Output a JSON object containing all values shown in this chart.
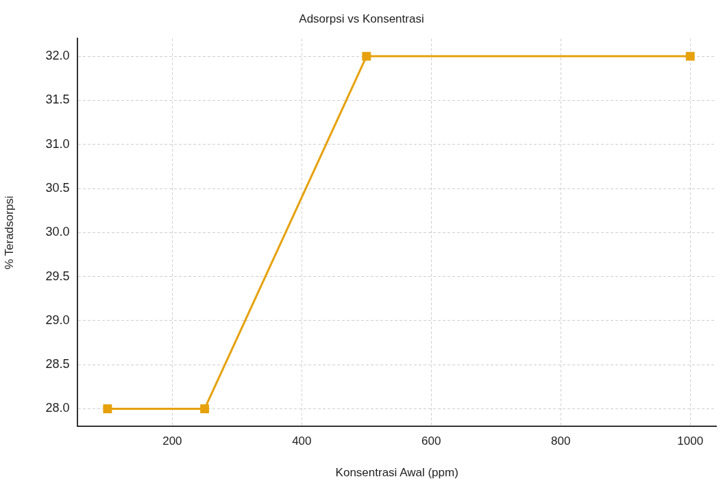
{
  "chart_data": {
    "type": "line",
    "title": "Adsorpsi vs Konsentrasi",
    "xlabel": "Konsentrasi Awal (ppm)",
    "ylabel": "% Teradsorpsi",
    "x": [
      100,
      250,
      500,
      1000
    ],
    "series": [
      {
        "color": "#e6a10c",
        "values": [
          28.0,
          28.0,
          32.0,
          32.0
        ]
      }
    ],
    "xlim": [
      54,
      1040
    ],
    "xticks": [
      200,
      400,
      600,
      800,
      1000
    ],
    "ylim": [
      27.8,
      32.2
    ],
    "yticks": [
      {
        "value": 28,
        "label": "28.0"
      },
      {
        "value": 28.5,
        "label": "28.5"
      },
      {
        "value": 29,
        "label": "29.0"
      },
      {
        "value": 29.5,
        "label": "29.5"
      },
      {
        "value": 30,
        "label": "30.0"
      },
      {
        "value": 30.5,
        "label": "30.5"
      },
      {
        "value": 31,
        "label": "31.0"
      },
      {
        "value": 31.5,
        "label": "31.5"
      },
      {
        "value": 32,
        "label": "32.0"
      }
    ],
    "grid": true,
    "legend": false,
    "marker": "square",
    "line_style": "solid"
  }
}
